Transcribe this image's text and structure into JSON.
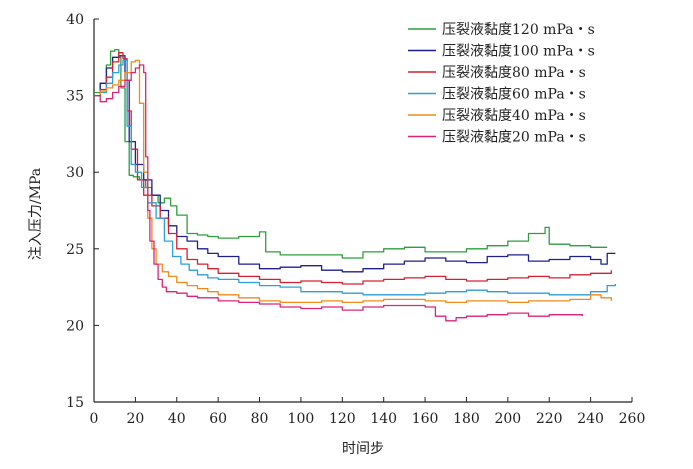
{
  "chart_data": {
    "type": "line",
    "xlabel": "时间步",
    "ylabel": "注入压力/MPa",
    "xlim": [
      0,
      260
    ],
    "ylim": [
      15,
      40
    ],
    "xticks": [
      0,
      20,
      40,
      60,
      80,
      100,
      120,
      140,
      160,
      180,
      200,
      220,
      240,
      260
    ],
    "yticks": [
      15,
      20,
      25,
      30,
      35,
      40
    ],
    "grid": false,
    "legend_position": "top-right",
    "series": [
      {
        "name": "压裂液黏度120 mPa・s",
        "color": "#2e9e3e",
        "x": [
          0,
          3,
          6,
          8,
          10,
          12,
          13,
          15,
          17,
          19,
          22,
          25,
          28,
          31,
          34,
          37,
          40,
          45,
          50,
          55,
          60,
          70,
          80,
          83,
          90,
          100,
          110,
          120,
          130,
          140,
          150,
          160,
          170,
          180,
          190,
          200,
          210,
          218,
          220,
          230,
          240,
          248
        ],
        "y": [
          35.2,
          35.8,
          37.0,
          37.9,
          38.0,
          37.5,
          35.5,
          32.0,
          29.8,
          29.7,
          29.5,
          29.0,
          28.5,
          28.0,
          28.3,
          27.8,
          27.2,
          26.0,
          25.9,
          25.8,
          25.7,
          25.8,
          26.1,
          24.8,
          24.6,
          24.6,
          24.6,
          24.4,
          24.8,
          25.0,
          25.1,
          24.8,
          24.8,
          25.0,
          25.2,
          25.5,
          26.0,
          26.4,
          25.3,
          25.2,
          25.1,
          25.1
        ]
      },
      {
        "name": "压裂液黏度100 mPa・s",
        "color": "#1f1f8f",
        "x": [
          0,
          3,
          6,
          9,
          12,
          15,
          17,
          20,
          24,
          28,
          32,
          36,
          40,
          45,
          50,
          55,
          60,
          70,
          80,
          90,
          100,
          110,
          120,
          130,
          140,
          150,
          160,
          170,
          180,
          190,
          200,
          210,
          220,
          230,
          240,
          245,
          248,
          252
        ],
        "y": [
          35.0,
          35.8,
          36.8,
          37.5,
          37.6,
          36.0,
          32.0,
          30.5,
          29.5,
          28.5,
          27.5,
          26.5,
          25.8,
          25.5,
          25.0,
          24.7,
          24.5,
          24.0,
          23.7,
          23.8,
          23.9,
          23.6,
          23.5,
          23.7,
          24.0,
          24.2,
          24.4,
          24.2,
          24.1,
          24.5,
          24.6,
          24.2,
          24.3,
          24.5,
          24.3,
          24.0,
          24.7,
          24.7
        ]
      },
      {
        "name": "压裂液黏度80 mPa・s",
        "color": "#d42030",
        "x": [
          0,
          3,
          6,
          9,
          12,
          14,
          16,
          18,
          21,
          24,
          28,
          32,
          36,
          40,
          45,
          50,
          55,
          60,
          70,
          80,
          90,
          100,
          110,
          120,
          130,
          140,
          150,
          160,
          170,
          180,
          190,
          200,
          210,
          220,
          230,
          240,
          250
        ],
        "y": [
          35.0,
          35.4,
          36.2,
          37.2,
          37.8,
          37.4,
          34.0,
          31.5,
          29.5,
          28.5,
          27.8,
          27.0,
          26.0,
          25.0,
          24.3,
          24.0,
          23.7,
          23.4,
          23.2,
          23.0,
          22.8,
          22.9,
          22.8,
          22.7,
          22.9,
          23.0,
          23.1,
          23.2,
          23.0,
          22.9,
          23.0,
          23.1,
          23.2,
          23.1,
          23.3,
          23.4,
          23.6
        ]
      },
      {
        "name": "压裂液黏度60 mPa・s",
        "color": "#2a9fd8",
        "x": [
          0,
          3,
          6,
          9,
          12,
          14,
          16,
          18,
          20,
          23,
          26,
          30,
          34,
          38,
          42,
          46,
          50,
          55,
          60,
          70,
          80,
          90,
          100,
          110,
          120,
          130,
          140,
          150,
          160,
          170,
          180,
          190,
          200,
          210,
          220,
          230,
          240,
          248,
          252
        ],
        "y": [
          35.0,
          35.2,
          35.8,
          36.5,
          37.0,
          37.3,
          33.0,
          30.5,
          30.0,
          29.0,
          28.0,
          27.0,
          25.5,
          24.5,
          24.0,
          23.6,
          23.3,
          23.1,
          23.0,
          22.8,
          22.6,
          22.5,
          22.2,
          22.2,
          22.1,
          22.0,
          22.0,
          22.0,
          22.1,
          22.2,
          22.3,
          22.2,
          22.1,
          22.1,
          22.0,
          22.0,
          22.2,
          22.6,
          22.7
        ]
      },
      {
        "name": "压裂液黏度40 mPa・s",
        "color": "#f08a1c",
        "x": [
          0,
          3,
          6,
          9,
          12,
          15,
          18,
          20,
          22,
          24,
          26,
          28,
          30,
          33,
          36,
          40,
          45,
          50,
          55,
          60,
          70,
          80,
          90,
          100,
          110,
          120,
          130,
          140,
          150,
          160,
          170,
          180,
          190,
          200,
          210,
          220,
          230,
          240,
          245,
          250
        ],
        "y": [
          35.0,
          35.3,
          35.5,
          35.7,
          36.0,
          36.5,
          37.2,
          37.3,
          34.5,
          30.0,
          27.0,
          25.0,
          24.0,
          23.5,
          23.2,
          22.8,
          22.6,
          22.4,
          22.2,
          22.0,
          21.8,
          21.6,
          21.5,
          21.5,
          21.6,
          21.5,
          21.6,
          21.7,
          21.7,
          21.6,
          21.5,
          21.6,
          21.6,
          21.5,
          21.6,
          21.6,
          21.7,
          22.0,
          21.8,
          21.6
        ]
      },
      {
        "name": "压裂液黏度20 mPa・s",
        "color": "#d8257a",
        "x": [
          0,
          3,
          6,
          9,
          12,
          15,
          18,
          20,
          22,
          24,
          25,
          26,
          27,
          29,
          31,
          33,
          35,
          40,
          45,
          50,
          60,
          70,
          80,
          90,
          100,
          110,
          120,
          130,
          140,
          150,
          160,
          165,
          170,
          175,
          180,
          190,
          200,
          210,
          220,
          230,
          236
        ],
        "y": [
          35.0,
          34.6,
          34.8,
          35.2,
          35.6,
          36.0,
          36.5,
          36.8,
          37.0,
          36.5,
          31.0,
          27.5,
          25.5,
          24.0,
          23.0,
          22.5,
          22.2,
          22.1,
          21.9,
          21.8,
          21.6,
          21.5,
          21.4,
          21.2,
          21.1,
          21.2,
          21.0,
          21.2,
          21.3,
          21.3,
          21.2,
          20.6,
          20.3,
          20.5,
          20.6,
          20.7,
          20.8,
          20.6,
          20.7,
          20.7,
          20.6
        ]
      }
    ]
  }
}
